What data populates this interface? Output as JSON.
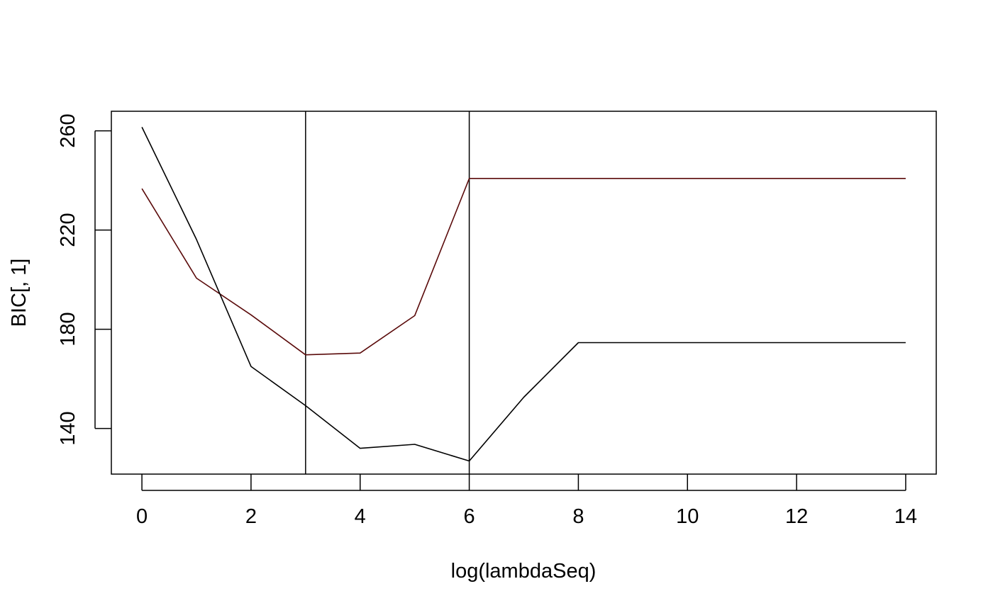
{
  "chart_data": {
    "type": "line",
    "title": "",
    "xlabel": "log(lambdaSeq)",
    "ylabel": "BIC[, 1]",
    "xlim": [
      -0.56,
      14.56
    ],
    "ylim": [
      121.6,
      267.9
    ],
    "x_ticks": [
      0,
      2,
      4,
      6,
      8,
      10,
      12,
      14
    ],
    "x_tick_labels": [
      "0",
      "2",
      "4",
      "6",
      "8",
      "10",
      "12",
      "14"
    ],
    "y_ticks": [
      140,
      180,
      220,
      260
    ],
    "y_tick_labels": [
      "140",
      "180",
      "220",
      "260"
    ],
    "grid": false,
    "legend": "none",
    "series": [
      {
        "color": "#5a0a0a",
        "x": [
          0,
          1,
          2,
          3,
          4,
          5,
          6,
          7,
          8,
          9,
          10,
          11,
          12,
          13,
          14
        ],
        "values": [
          236.7,
          200.6,
          185.8,
          169.7,
          170.4,
          185.5,
          240.8,
          240.8,
          240.8,
          240.8,
          240.8,
          240.8,
          240.8,
          240.8,
          240.8
        ]
      },
      {
        "color": "#000000",
        "x": [
          0,
          1,
          2,
          3,
          4,
          5,
          6,
          7,
          8,
          9,
          10,
          11,
          12,
          13,
          14
        ],
        "values": [
          261.5,
          216.2,
          165.0,
          149.2,
          132.0,
          133.6,
          126.9,
          152.6,
          174.6,
          174.6,
          174.6,
          174.6,
          174.6,
          174.6,
          174.6
        ]
      }
    ],
    "vlines": [
      3,
      6
    ]
  }
}
